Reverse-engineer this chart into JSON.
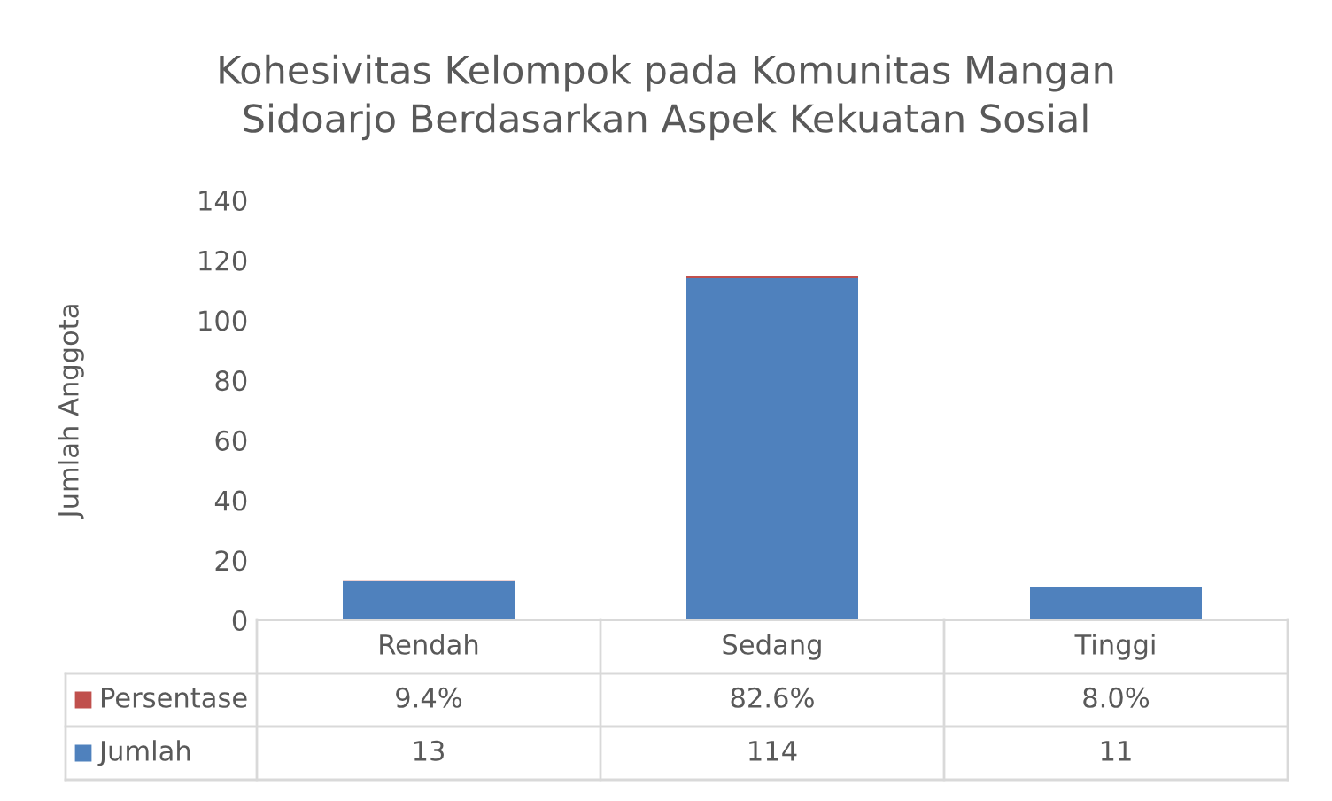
{
  "chart_data": {
    "type": "bar",
    "title": "Kohesivitas Kelompok pada Komunitas Mangan\nSidoarjo Berdasarkan Aspek Kekuatan Sosial",
    "ylabel": "Jumlah Anggota",
    "categories": [
      "Rendah",
      "Sedang",
      "Tinggi"
    ],
    "stacked": true,
    "series": [
      {
        "name": "Jumlah",
        "color": "#4f81bd",
        "values": [
          13,
          114,
          11
        ],
        "value_labels": [
          "13",
          "114",
          "11"
        ]
      },
      {
        "name": "Persentase",
        "color": "#c0504d",
        "values": [
          0.094,
          0.826,
          0.08
        ],
        "value_labels": [
          "9.4%",
          "82.6%",
          "8.0%"
        ]
      }
    ],
    "ylim": [
      0,
      140
    ],
    "yticks": [
      0,
      20,
      40,
      60,
      80,
      100,
      120,
      140
    ],
    "grid": false,
    "legend": "bottom left"
  }
}
